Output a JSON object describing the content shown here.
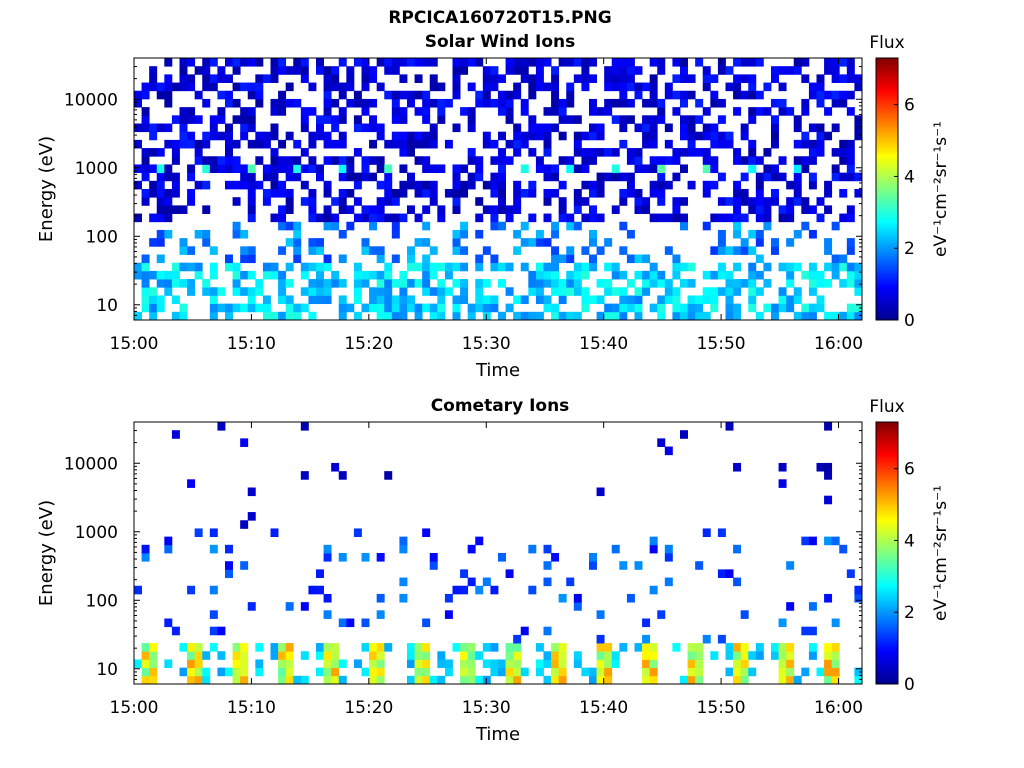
{
  "figure_title": "RPCICA160720T15.PNG",
  "chart_data": [
    {
      "type": "heatmap",
      "title": "Solar Wind Ions",
      "xlabel": "Time",
      "ylabel": "Energy (eV)",
      "x_range": [
        "15:00",
        "16:02"
      ],
      "x_ticks": [
        "15:00",
        "15:10",
        "15:20",
        "15:30",
        "15:40",
        "15:50",
        "16:00"
      ],
      "y_scale": "log",
      "y_range": [
        6,
        40000
      ],
      "y_ticks": [
        "10",
        "100",
        "1000",
        "10000"
      ],
      "colorbar": {
        "label": "Flux",
        "unit": "eV⁻¹cm⁻²sr⁻¹s⁻¹",
        "range": [
          0,
          7.3
        ],
        "ticks": [
          "0",
          "2",
          "4",
          "6"
        ],
        "colormap": "jet"
      },
      "bands": [
        {
          "energy_range_ev": [
            3000,
            40000
          ],
          "flux_typical": 0.5,
          "coverage": "dense-patchy"
        },
        {
          "energy_range_ev": [
            150,
            3000
          ],
          "flux_typical": 0.9,
          "coverage": "dense-patchy"
        },
        {
          "energy_range_ev": [
            900,
            1100
          ],
          "flux_peak": 3.2,
          "coverage": "periodic-spots"
        },
        {
          "energy_range_ev": [
            6,
            150
          ],
          "flux_typical": 2.0,
          "coverage": "patchy"
        }
      ]
    },
    {
      "type": "heatmap",
      "title": "Cometary Ions",
      "xlabel": "Time",
      "ylabel": "Energy (eV)",
      "x_range": [
        "15:00",
        "16:02"
      ],
      "x_ticks": [
        "15:00",
        "15:10",
        "15:20",
        "15:30",
        "15:40",
        "15:50",
        "16:00"
      ],
      "y_scale": "log",
      "y_range": [
        6,
        40000
      ],
      "y_ticks": [
        "10",
        "100",
        "1000",
        "10000"
      ],
      "colorbar": {
        "label": "Flux",
        "unit": "eV⁻¹cm⁻²sr⁻¹s⁻¹",
        "range": [
          0,
          7.3
        ],
        "ticks": [
          "0",
          "2",
          "4",
          "6"
        ],
        "colormap": "jet"
      },
      "bands": [
        {
          "energy_range_ev": [
            1000,
            35000
          ],
          "flux_typical": 0.4,
          "coverage": "sparse"
        },
        {
          "energy_range_ev": [
            40,
            1000
          ],
          "flux_typical": 1.2,
          "coverage": "sparse"
        },
        {
          "energy_range_ev": [
            6,
            25
          ],
          "flux_peak": 5.0,
          "coverage": "periodic-columns"
        }
      ]
    }
  ]
}
